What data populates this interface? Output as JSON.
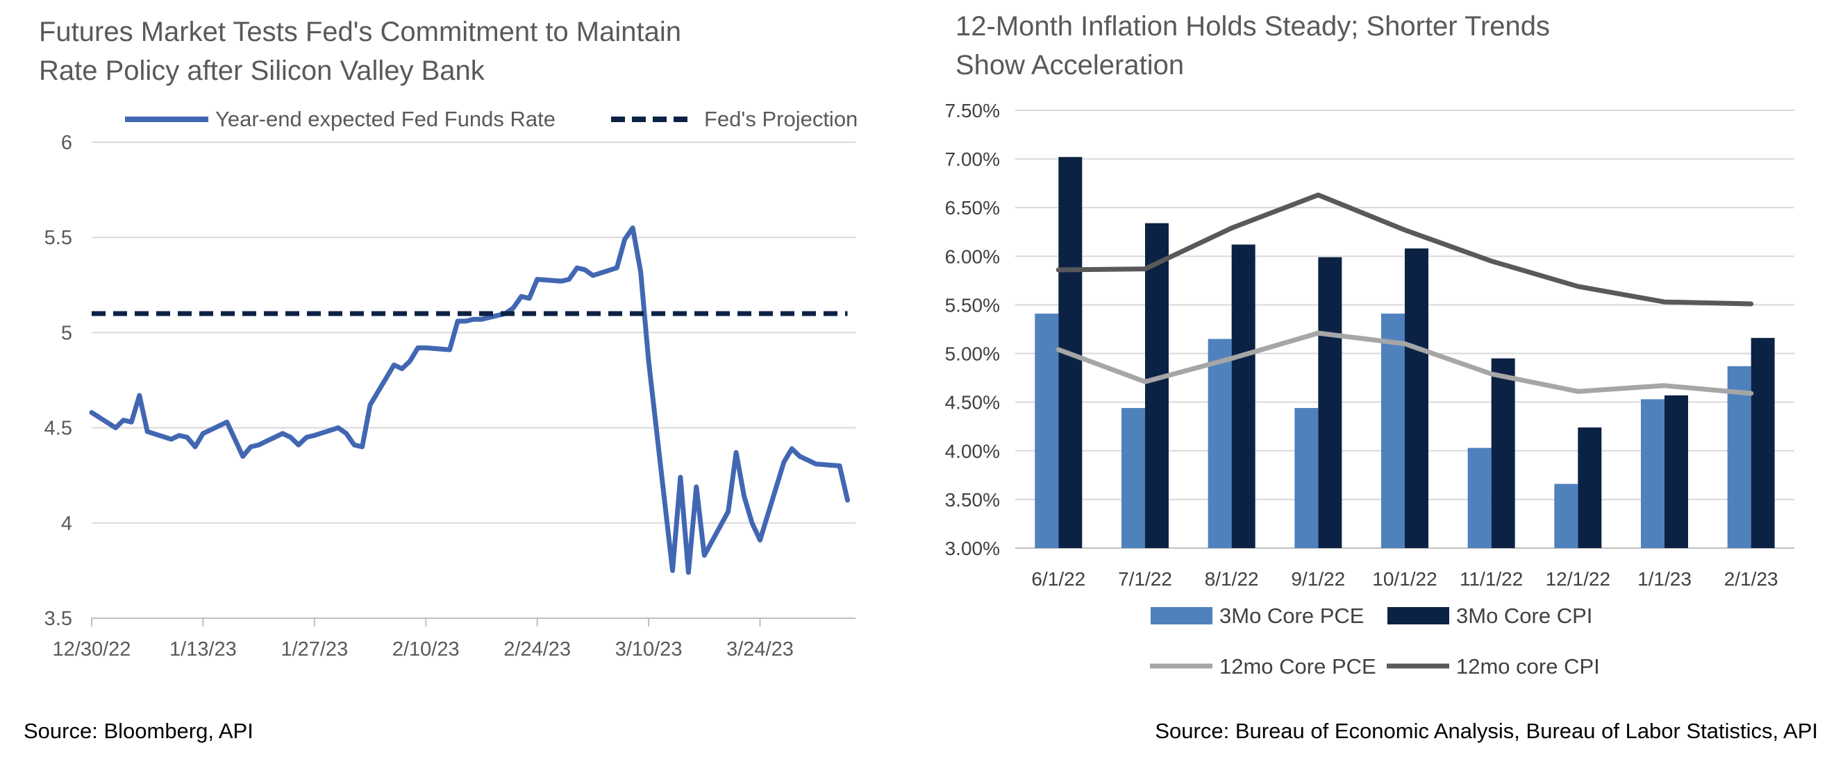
{
  "left": {
    "title_line1": "Futures Market Tests Fed's Commitment to Maintain",
    "title_line2": "Rate Policy after Silicon Valley Bank",
    "source": "Source: Bloomberg, API"
  },
  "right": {
    "title_line1": "12-Month Inflation Holds Steady; Shorter Trends",
    "title_line2": "Show Acceleration",
    "source": "Source: Bureau of Economic Analysis, Bureau of Labor Statistics, API"
  },
  "chart_data": [
    {
      "type": "line",
      "title": "Futures Market Tests Fed's Commitment to Maintain Rate Policy after Silicon Valley Bank",
      "xlabel": "",
      "ylabel": "",
      "ylim": [
        3.5,
        6
      ],
      "yticks": [
        "6",
        "5.5",
        "5",
        "4.5",
        "4",
        "3.5"
      ],
      "xticks": [
        "12/30/22",
        "1/13/23",
        "1/27/23",
        "2/10/23",
        "2/24/23",
        "3/10/23",
        "3/24/23"
      ],
      "xrange": [
        "2022-12-30",
        "2023-04-05"
      ],
      "grid": true,
      "legend_position": "top",
      "colors": {
        "expected": "#4267b2",
        "projection": "#0c2245"
      },
      "series": [
        {
          "name": "Year-end expected Fed Funds Rate",
          "style": "solid",
          "x": [
            "2022-12-30",
            "2023-01-02",
            "2023-01-03",
            "2023-01-04",
            "2023-01-05",
            "2023-01-06",
            "2023-01-09",
            "2023-01-10",
            "2023-01-11",
            "2023-01-12",
            "2023-01-13",
            "2023-01-16",
            "2023-01-17",
            "2023-01-18",
            "2023-01-19",
            "2023-01-20",
            "2023-01-23",
            "2023-01-24",
            "2023-01-25",
            "2023-01-26",
            "2023-01-27",
            "2023-01-30",
            "2023-01-31",
            "2023-02-01",
            "2023-02-02",
            "2023-02-03",
            "2023-02-06",
            "2023-02-07",
            "2023-02-08",
            "2023-02-09",
            "2023-02-10",
            "2023-02-13",
            "2023-02-14",
            "2023-02-15",
            "2023-02-16",
            "2023-02-17",
            "2023-02-20",
            "2023-02-21",
            "2023-02-22",
            "2023-02-23",
            "2023-02-24",
            "2023-02-27",
            "2023-02-28",
            "2023-03-01",
            "2023-03-02",
            "2023-03-03",
            "2023-03-06",
            "2023-03-07",
            "2023-03-08",
            "2023-03-09",
            "2023-03-10",
            "2023-03-13",
            "2023-03-14",
            "2023-03-15",
            "2023-03-16",
            "2023-03-17",
            "2023-03-20",
            "2023-03-21",
            "2023-03-22",
            "2023-03-23",
            "2023-03-24",
            "2023-03-27",
            "2023-03-28",
            "2023-03-29",
            "2023-03-30",
            "2023-03-31",
            "2023-04-03",
            "2023-04-04"
          ],
          "values": [
            4.58,
            4.5,
            4.54,
            4.53,
            4.67,
            4.48,
            4.44,
            4.46,
            4.45,
            4.4,
            4.47,
            4.53,
            4.44,
            4.35,
            4.4,
            4.41,
            4.47,
            4.45,
            4.41,
            4.45,
            4.46,
            4.5,
            4.47,
            4.41,
            4.4,
            4.62,
            4.83,
            4.81,
            4.85,
            4.92,
            4.92,
            4.91,
            5.06,
            5.06,
            5.07,
            5.07,
            5.1,
            5.13,
            5.19,
            5.18,
            5.28,
            5.27,
            5.28,
            5.34,
            5.33,
            5.3,
            5.34,
            5.49,
            5.55,
            5.32,
            4.85,
            3.75,
            4.24,
            3.74,
            4.19,
            3.83,
            4.06,
            4.37,
            4.14,
            4.0,
            3.91,
            4.32,
            4.39,
            4.35,
            4.33,
            4.31,
            4.3,
            4.12
          ]
        },
        {
          "name": "Fed's Projection",
          "style": "dashed",
          "x": [
            "2022-12-30",
            "2023-04-04"
          ],
          "values": [
            5.1,
            5.1
          ]
        }
      ]
    },
    {
      "type": "bar",
      "title": "12-Month Inflation Holds Steady; Shorter Trends Show Acceleration",
      "xlabel": "",
      "ylabel": "",
      "ylim": [
        3.0,
        7.5
      ],
      "yticks": [
        "7.50%",
        "7.00%",
        "6.50%",
        "6.00%",
        "5.50%",
        "5.00%",
        "4.50%",
        "4.00%",
        "3.50%",
        "3.00%"
      ],
      "categories": [
        "6/1/22",
        "7/1/22",
        "8/1/22",
        "9/1/22",
        "10/1/22",
        "11/1/22",
        "12/1/22",
        "1/1/23",
        "2/1/23"
      ],
      "grid": true,
      "legend_position": "bottom",
      "colors": {
        "pce3": "#4f81bd",
        "cpi3": "#0c2245",
        "pce12": "#a6a6a6",
        "cpi12": "#595959"
      },
      "series": [
        {
          "name": "3Mo Core PCE",
          "kind": "bar",
          "values": [
            5.41,
            4.44,
            5.15,
            4.44,
            5.41,
            4.03,
            3.66,
            4.53,
            4.87
          ]
        },
        {
          "name": "3Mo Core CPI",
          "kind": "bar",
          "values": [
            7.02,
            6.34,
            6.12,
            5.99,
            6.08,
            4.95,
            4.24,
            4.57,
            5.16
          ]
        },
        {
          "name": "12mo Core PCE",
          "kind": "line",
          "values": [
            5.04,
            4.71,
            4.95,
            5.21,
            5.1,
            4.79,
            4.61,
            4.67,
            4.59
          ]
        },
        {
          "name": "12mo core CPI",
          "kind": "line",
          "values": [
            5.86,
            5.87,
            6.29,
            6.63,
            6.27,
            5.95,
            5.69,
            5.53,
            5.51
          ]
        }
      ]
    }
  ]
}
